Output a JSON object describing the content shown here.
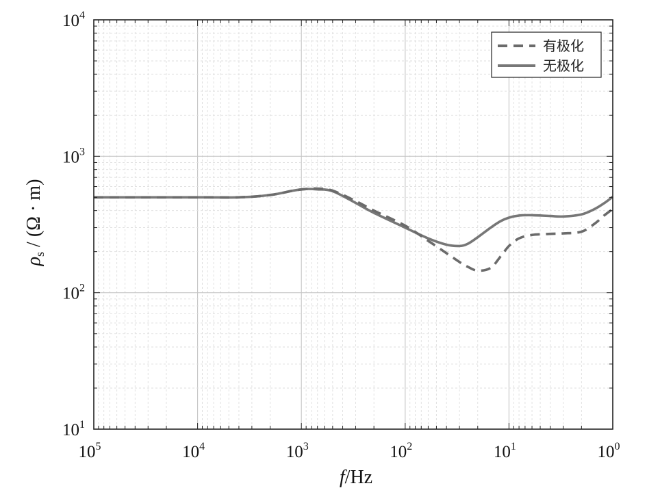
{
  "chart_data": {
    "type": "line",
    "xlabel_italic": "f",
    "xlabel_rest": "/Hz",
    "ylabel_rho": "ρ",
    "ylabel_sub": "s",
    "ylabel_rest": " / (Ω · m)",
    "xscale": "log",
    "yscale": "log",
    "xreversed": true,
    "xlim": [
      100000,
      1
    ],
    "ylim": [
      10,
      10000
    ],
    "grid": true,
    "legend_placement": "top-right",
    "x_ticks": [
      {
        "base": "10",
        "exp": "5",
        "value": 100000
      },
      {
        "base": "10",
        "exp": "4",
        "value": 10000
      },
      {
        "base": "10",
        "exp": "3",
        "value": 1000
      },
      {
        "base": "10",
        "exp": "2",
        "value": 100
      },
      {
        "base": "10",
        "exp": "1",
        "value": 10
      },
      {
        "base": "10",
        "exp": "0",
        "value": 1
      }
    ],
    "y_ticks": [
      {
        "base": "10",
        "exp": "1",
        "value": 10
      },
      {
        "base": "10",
        "exp": "2",
        "value": 100
      },
      {
        "base": "10",
        "exp": "3",
        "value": 1000
      },
      {
        "base": "10",
        "exp": "4",
        "value": 10000
      }
    ],
    "series": [
      {
        "name": "有极化",
        "style": "dashed",
        "color": "#6b6b6b",
        "x": [
          100000,
          30000,
          15000,
          8000,
          4000,
          2000,
          1200,
          900,
          700,
          500,
          300,
          200,
          100,
          60,
          40,
          30,
          25,
          20,
          15,
          12,
          10,
          8,
          6,
          4,
          3,
          2,
          1.5,
          1.2,
          1
        ],
        "y": [
          500,
          500,
          500,
          500,
          500,
          520,
          560,
          575,
          580,
          560,
          470,
          400,
          310,
          240,
          195,
          168,
          155,
          145,
          152,
          185,
          220,
          250,
          265,
          270,
          272,
          280,
          320,
          370,
          410
        ]
      },
      {
        "name": "无极化",
        "style": "solid",
        "color": "#777777",
        "x": [
          100000,
          30000,
          15000,
          8000,
          4000,
          2000,
          1200,
          900,
          700,
          500,
          300,
          200,
          100,
          60,
          40,
          30,
          25,
          20,
          15,
          12,
          10,
          8,
          6,
          4,
          3,
          2,
          1.5,
          1.2,
          1
        ],
        "y": [
          500,
          500,
          500,
          500,
          500,
          520,
          560,
          575,
          572,
          555,
          455,
          385,
          300,
          250,
          225,
          220,
          228,
          255,
          300,
          335,
          355,
          368,
          370,
          365,
          362,
          375,
          410,
          455,
          505
        ]
      }
    ]
  }
}
